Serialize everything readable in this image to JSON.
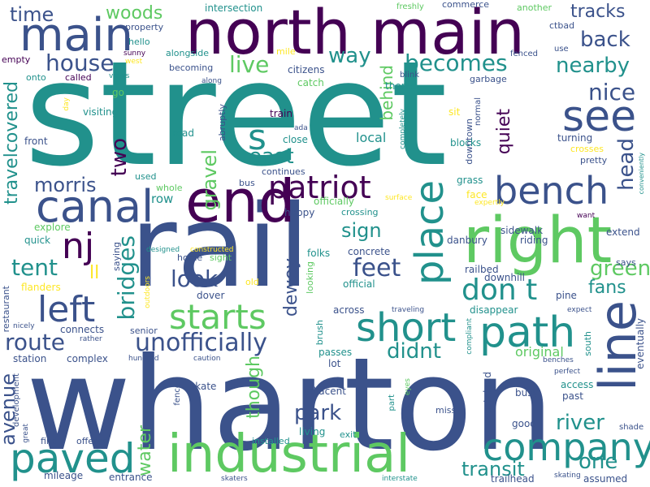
{
  "palette": [
    "#440154",
    "#3b528b",
    "#21918c",
    "#5ec962",
    "#fde725"
  ],
  "words": {
    "street": "street",
    "rail": "rail",
    "wharton": "wharton",
    "north_main": "north main",
    "main": "main",
    "end": "end",
    "right": "right",
    "canal": "canal",
    "industrial": "industrial",
    "paved": "paved",
    "path": "path",
    "company": "company",
    "line": "line",
    "bench": "bench",
    "short": "short",
    "patriot": "patriot",
    "starts": "starts",
    "place": "place",
    "nj": "nj",
    "left": "left",
    "see": "see",
    "don_t": "don t",
    "feet": "feet",
    "tent": "tent",
    "look": "look",
    "bridges": "bridges",
    "route": "route",
    "unofficially": "unofficially",
    "didnt": "didnt",
    "green": "green",
    "river": "river",
    "one": "one",
    "transit": "transit",
    "park": "park",
    "avenue": "avenue",
    "water": "water",
    "though": "though",
    "east": "east",
    "gravel": "gravel",
    "two": "two",
    "s": "s",
    "house": "house",
    "way": "way",
    "becomes": "becomes",
    "live": "live",
    "behind": "behind",
    "nice": "nice",
    "tracks": "tracks",
    "back": "back",
    "nearby": "nearby",
    "quiet": "quiet",
    "head": "head",
    "woods": "woods",
    "time": "time",
    "morris": "morris",
    "travelcovered": "travelcovered",
    "sign": "sign",
    "dewey": "dewey",
    "fans": "fans",
    "ll": "ll",
    "original": "original",
    "local": "local",
    "row": "row",
    "explore": "explore",
    "quick": "quick",
    "intersection": "intersection",
    "commerce": "commerce",
    "another": "another",
    "freshly": "freshly",
    "ctbad": "ctbad",
    "property": "property",
    "hello": "hello",
    "sunny": "sunny",
    "west": "west",
    "empty": "empty",
    "onto": "onto",
    "called": "called",
    "views": "views",
    "alongside": "alongside",
    "becoming": "becoming",
    "along": "along",
    "mile": "mile",
    "citizens": "citizens",
    "catch": "catch",
    "blink": "blink",
    "theres": "theres",
    "garbage": "garbage",
    "fenced": "fenced",
    "use": "use",
    "go": "go",
    "visiting": "visiting",
    "day": "day",
    "train": "train",
    "abruptly": "abruptly",
    "road": "road",
    "ada": "ada",
    "close": "close",
    "completely": "completely",
    "sit": "sit",
    "normal": "normal",
    "downtown": "downtown",
    "blocks": "blocks",
    "turning": "turning",
    "crosses": "crosses",
    "pretty": "pretty",
    "conveniently": "conveniently",
    "front": "front",
    "used": "used",
    "whole": "whole",
    "bus": "bus",
    "continues": "continues",
    "grass": "grass",
    "officially": "officially",
    "surface": "surface",
    "face": "face",
    "expertly": "expertly",
    "happy": "happy",
    "crossing": "crossing",
    "danbury": "danbury",
    "sidewalk": "sidewalk",
    "extend": "extend",
    "riding": "riding",
    "want": "want",
    "saying": "saying",
    "designed": "designed",
    "constructed": "constructed",
    "folks": "folks",
    "concrete": "concrete",
    "official": "official",
    "says": "says",
    "home": "home",
    "sight": "sight",
    "old": "old",
    "looking": "looking",
    "railbed": "railbed",
    "downhill": "downhill",
    "pine": "pine",
    "flanders": "flanders",
    "outdoors": "outdoors",
    "dover": "dover",
    "across": "across",
    "disappear": "disappear",
    "restaurant": "restaurant",
    "traveling": "traveling",
    "expect": "expect",
    "nicely": "nicely",
    "connects": "connects",
    "senior": "senior",
    "rather": "rather",
    "brush": "brush",
    "compliant": "compliant",
    "south": "south",
    "eventually": "eventually",
    "station": "station",
    "complex": "complex",
    "hundred": "hundred",
    "caution": "caution",
    "fence": "fence",
    "skate": "skate",
    "passes": "passes",
    "lot": "lot",
    "benches": "benches",
    "perfect": "perfect",
    "access": "access",
    "past": "past",
    "development": "development",
    "adjacent": "adjacent",
    "wasteland": "wasteland",
    "busy": "busy",
    "great": "great",
    "part": "part",
    "eyes": "eyes",
    "going": "going",
    "miss": "miss",
    "living": "living",
    "exit": "exit",
    "installed": "installed",
    "good": "good",
    "shade": "shade",
    "find": "find",
    "offered": "offered",
    "mileage": "mileage",
    "entrance": "entrance",
    "skaters": "skaters",
    "interstate": "interstate",
    "trailhead": "trailhead",
    "skating": "skating",
    "assumed": "assumed"
  }
}
